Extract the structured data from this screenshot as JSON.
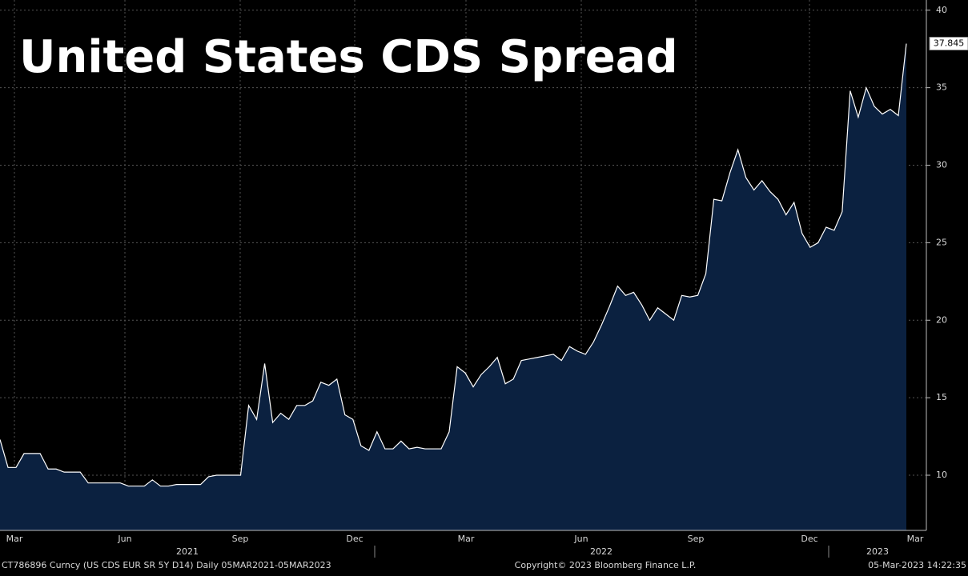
{
  "chart_data": {
    "type": "area",
    "title": "United States CDS Spread",
    "x_labels": [
      "Mar",
      "Jun",
      "Sep",
      "Dec",
      "Mar",
      "Jun",
      "Sep",
      "Dec",
      "Mar"
    ],
    "year_labels": [
      "2021",
      "2022",
      "2023"
    ],
    "series": [
      {
        "name": "CT786896 Curncy",
        "color": "#ffffff",
        "fill": "#0b2140",
        "values": [
          12.3,
          10.5,
          10.5,
          11.4,
          11.4,
          11.4,
          10.4,
          10.4,
          10.2,
          10.2,
          10.2,
          9.5,
          9.5,
          9.5,
          9.5,
          9.5,
          9.3,
          9.3,
          9.3,
          9.7,
          9.3,
          9.3,
          9.4,
          9.4,
          9.4,
          9.4,
          9.9,
          10.0,
          10.0,
          10.0,
          10.0,
          14.5,
          13.6,
          17.2,
          13.4,
          14.0,
          13.6,
          14.5,
          14.5,
          14.8,
          16.0,
          15.8,
          16.2,
          13.9,
          13.6,
          11.9,
          11.6,
          12.8,
          11.7,
          11.7,
          12.2,
          11.7,
          11.8,
          11.7,
          11.7,
          11.7,
          12.8,
          17.0,
          16.6,
          15.7,
          16.5,
          17.0,
          17.6,
          15.9,
          16.2,
          17.4,
          17.5,
          17.6,
          17.7,
          17.8,
          17.4,
          18.3,
          18.0,
          17.8,
          18.6,
          19.7,
          20.9,
          22.2,
          21.6,
          21.8,
          21.0,
          20.0,
          20.8,
          20.4,
          20.0,
          21.6,
          21.5,
          21.6,
          23.0,
          27.8,
          27.7,
          29.5,
          31.0,
          29.2,
          28.4,
          29.0,
          28.3,
          27.8,
          26.8,
          27.6,
          25.6,
          24.7,
          25.0,
          26.0,
          25.8,
          27.0,
          34.8,
          33.1,
          35.0,
          33.8,
          33.3,
          33.6,
          33.2,
          37.845
        ]
      }
    ],
    "last_value_label": "37.845",
    "ylim": [
      6.44,
      40.4
    ],
    "yticks": [
      10,
      15,
      20,
      25,
      30,
      35,
      40
    ],
    "grid": true,
    "footer": {
      "left": "CT786896 Curncy (US CDS EUR SR 5Y D14)  Daily 05MAR2021-05MAR2023",
      "center": "Copyright© 2023 Bloomberg Finance L.P.",
      "right": "05-Mar-2023 14:22:35"
    }
  }
}
